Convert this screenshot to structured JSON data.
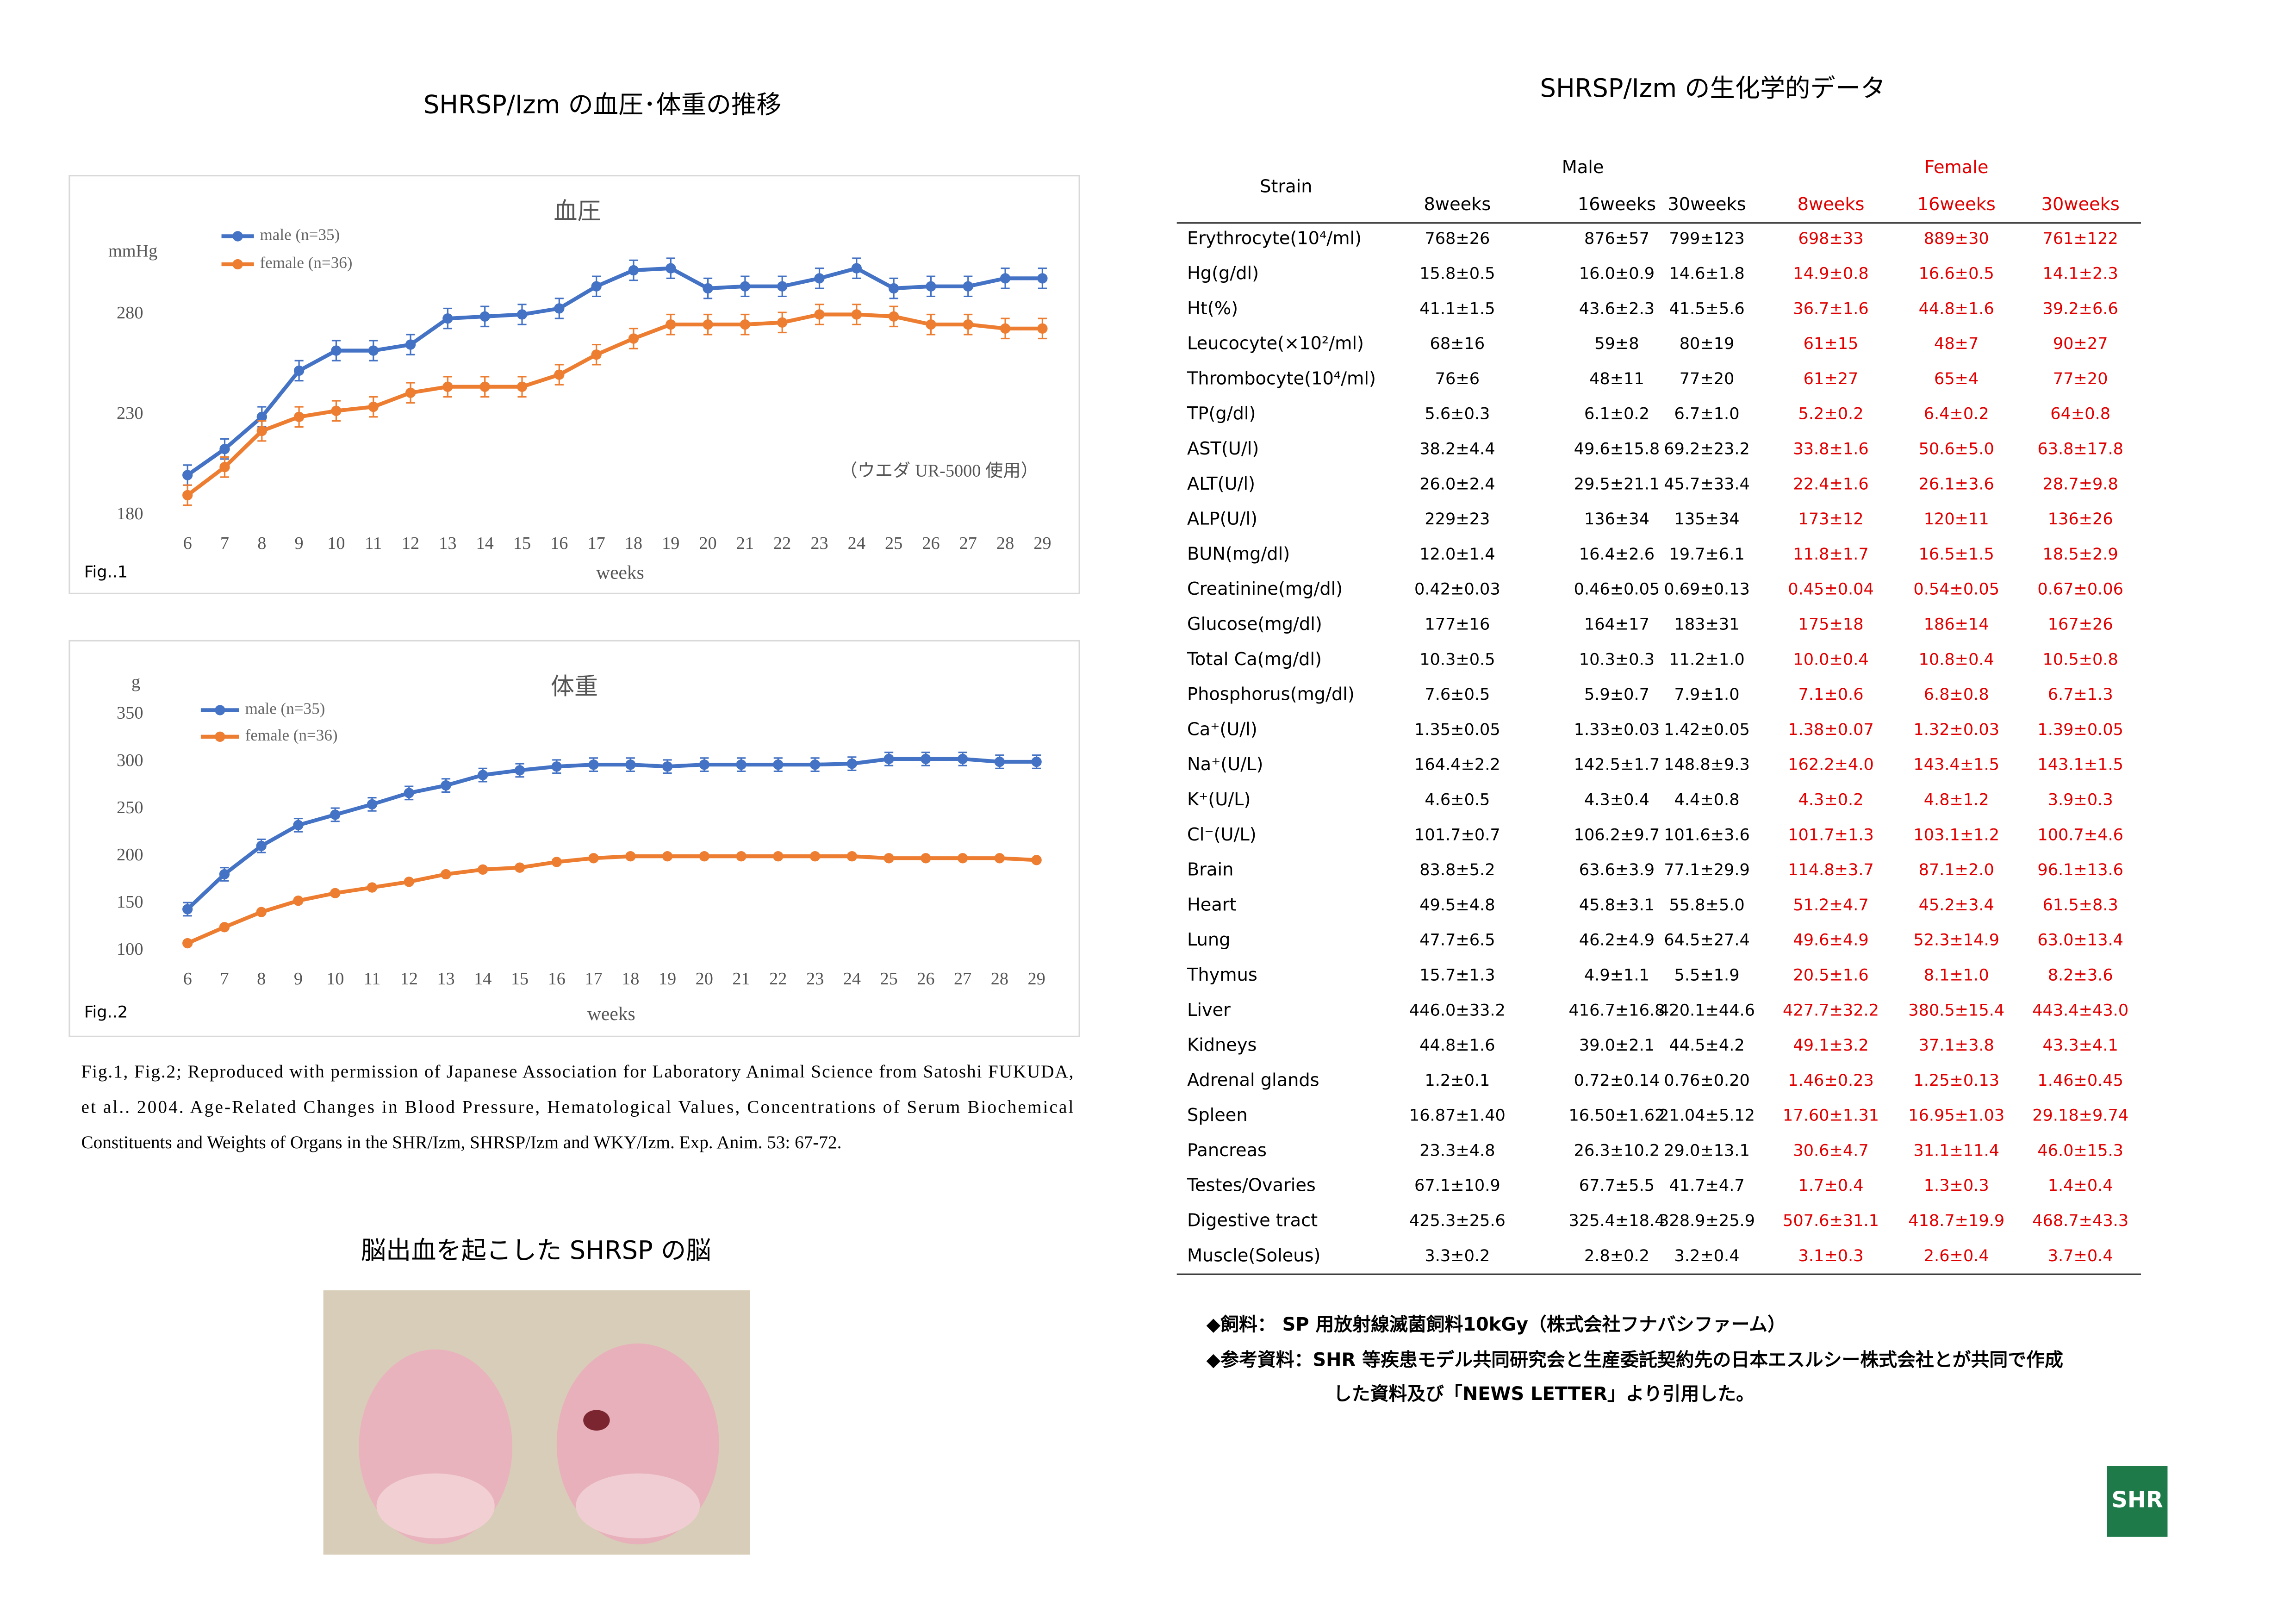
{
  "headings": {
    "left": "SHRSP/Izm の血圧･体重の推移",
    "right": "SHRSP/Izm の生化学的データ",
    "photo": "脳出血を起こした SHRSP の脳"
  },
  "chart_data": [
    {
      "type": "line",
      "title": "血圧",
      "y_label": "mmHg",
      "x_label": "weeks",
      "figure_label": "Fig..1",
      "annotation": "（ウエダ UR-5000 使用）",
      "categories": [
        "6",
        "7",
        "8",
        "9",
        "10",
        "11",
        "12",
        "13",
        "14",
        "15",
        "16",
        "17",
        "18",
        "19",
        "20",
        "21",
        "22",
        "23",
        "24",
        "25",
        "26",
        "27",
        "28",
        "29"
      ],
      "ylim": [
        180,
        330
      ],
      "yticks": [
        180,
        230,
        280
      ],
      "series": [
        {
          "name": "male (n=35)",
          "color": "#4472c4",
          "values": [
            200,
            213,
            229,
            252,
            262,
            262,
            265,
            278,
            279,
            280,
            283,
            294,
            302,
            303,
            293,
            294,
            294,
            298,
            303,
            293,
            294,
            294,
            298,
            298
          ],
          "errors": [
            5,
            5,
            5,
            5,
            5,
            5,
            5,
            5,
            5,
            5,
            5,
            5,
            5,
            5,
            5,
            5,
            5,
            5,
            5,
            5,
            5,
            5,
            5,
            5
          ]
        },
        {
          "name": "female (n=36)",
          "color": "#ed7d31",
          "values": [
            190,
            204,
            222,
            229,
            232,
            234,
            241,
            244,
            244,
            244,
            250,
            260,
            268,
            275,
            275,
            275,
            276,
            280,
            280,
            279,
            275,
            275,
            273,
            273
          ],
          "errors": [
            5,
            5,
            5,
            5,
            5,
            5,
            5,
            5,
            5,
            5,
            5,
            5,
            5,
            5,
            5,
            5,
            5,
            5,
            5,
            5,
            5,
            5,
            5,
            5
          ]
        }
      ]
    },
    {
      "type": "line",
      "title": "体重",
      "y_label": "g",
      "x_label": "weeks",
      "figure_label": "Fig..2",
      "categories": [
        "6",
        "7",
        "8",
        "9",
        "10",
        "11",
        "12",
        "13",
        "14",
        "15",
        "16",
        "17",
        "18",
        "19",
        "20",
        "21",
        "22",
        "23",
        "24",
        "25",
        "26",
        "27",
        "28",
        "29"
      ],
      "ylim": [
        100,
        350
      ],
      "yticks": [
        100,
        150,
        200,
        250,
        300,
        350
      ],
      "series": [
        {
          "name": "male (n=35)",
          "color": "#4472c4",
          "values": [
            144,
            181,
            211,
            233,
            244,
            255,
            267,
            275,
            286,
            291,
            295,
            297,
            297,
            295,
            297,
            297,
            297,
            297,
            298,
            303,
            303,
            303,
            300,
            300
          ],
          "errors": [
            7,
            7,
            7,
            7,
            7,
            7,
            7,
            7,
            7,
            7,
            7,
            7,
            7,
            7,
            7,
            7,
            7,
            7,
            7,
            7,
            7,
            7,
            7,
            7
          ]
        },
        {
          "name": "female (n=36)",
          "color": "#ed7d31",
          "values": [
            108,
            125,
            141,
            153,
            161,
            167,
            173,
            181,
            186,
            188,
            194,
            198,
            200,
            200,
            200,
            200,
            200,
            200,
            200,
            198,
            198,
            198,
            198,
            196
          ],
          "errors": [
            2,
            2,
            2,
            2,
            2,
            2,
            2,
            2,
            2,
            2,
            2,
            2,
            2,
            2,
            2,
            2,
            2,
            2,
            2,
            2,
            2,
            2,
            2,
            2
          ]
        }
      ]
    }
  ],
  "citation": [
    "Fig.1, Fig.2; Reproduced with permission of Japanese Association for Laboratory Animal Science from Satoshi FUKUDA,",
    "et al.. 2004. Age-Related Changes in Blood Pressure, Hematological Values, Concentrations of Serum Biochemical",
    "Constituents and Weights of Organs in the SHR/Izm, SHRSP/Izm and WKY/Izm. Exp. Anim. 53: 67-72."
  ],
  "table": {
    "strain": "Strain",
    "groups": [
      "Male",
      "Female"
    ],
    "weeks": [
      "8weeks",
      "16weeks",
      "30weeks",
      "8weeks",
      "16weeks",
      "30weeks"
    ],
    "rows": [
      [
        "Erythrocyte(10⁴/ml)",
        "768±26",
        "876±57",
        "799±123",
        "698±33",
        "889±30",
        "761±122"
      ],
      [
        "Hg(g/dl)",
        "15.8±0.5",
        "16.0±0.9",
        "14.6±1.8",
        "14.9±0.8",
        "16.6±0.5",
        "14.1±2.3"
      ],
      [
        "Ht(%)",
        "41.1±1.5",
        "43.6±2.3",
        "41.5±5.6",
        "36.7±1.6",
        "44.8±1.6",
        "39.2±6.6"
      ],
      [
        "Leucocyte(×10²/ml)",
        "68±16",
        "59±8",
        "80±19",
        "61±15",
        "48±7",
        "90±27"
      ],
      [
        "Thrombocyte(10⁴/ml)",
        "76±6",
        "48±11",
        "77±20",
        "61±27",
        "65±4",
        "77±20"
      ],
      [
        "TP(g/dl)",
        "5.6±0.3",
        "6.1±0.2",
        "6.7±1.0",
        "5.2±0.2",
        "6.4±0.2",
        "64±0.8"
      ],
      [
        "AST(U/l)",
        "38.2±4.4",
        "49.6±15.8",
        "69.2±23.2",
        "33.8±1.6",
        "50.6±5.0",
        "63.8±17.8"
      ],
      [
        "ALT(U/l)",
        "26.0±2.4",
        "29.5±21.1",
        "45.7±33.4",
        "22.4±1.6",
        "26.1±3.6",
        "28.7±9.8"
      ],
      [
        "ALP(U/l)",
        "229±23",
        "136±34",
        "135±34",
        "173±12",
        "120±11",
        "136±26"
      ],
      [
        "BUN(mg/dl)",
        "12.0±1.4",
        "16.4±2.6",
        "19.7±6.1",
        "11.8±1.7",
        "16.5±1.5",
        "18.5±2.9"
      ],
      [
        "Creatinine(mg/dl)",
        "0.42±0.03",
        "0.46±0.05",
        "0.69±0.13",
        "0.45±0.04",
        "0.54±0.05",
        "0.67±0.06"
      ],
      [
        "Glucose(mg/dl)",
        "177±16",
        "164±17",
        "183±31",
        "175±18",
        "186±14",
        "167±26"
      ],
      [
        "Total Ca(mg/dl)",
        "10.3±0.5",
        "10.3±0.3",
        "11.2±1.0",
        "10.0±0.4",
        "10.8±0.4",
        "10.5±0.8"
      ],
      [
        "Phosphorus(mg/dl)",
        "7.6±0.5",
        "5.9±0.7",
        "7.9±1.0",
        "7.1±0.6",
        "6.8±0.8",
        "6.7±1.3"
      ],
      [
        "Ca⁺(U/l)",
        "1.35±0.05",
        "1.33±0.03",
        "1.42±0.05",
        "1.38±0.07",
        "1.32±0.03",
        "1.39±0.05"
      ],
      [
        "Na⁺(U/L)",
        "164.4±2.2",
        "142.5±1.7",
        "148.8±9.3",
        "162.2±4.0",
        "143.4±1.5",
        "143.1±1.5"
      ],
      [
        "K⁺(U/L)",
        "4.6±0.5",
        "4.3±0.4",
        "4.4±0.8",
        "4.3±0.2",
        "4.8±1.2",
        "3.9±0.3"
      ],
      [
        "Cl⁻(U/L)",
        "101.7±0.7",
        "106.2±9.7",
        "101.6±3.6",
        "101.7±1.3",
        "103.1±1.2",
        "100.7±4.6"
      ],
      [
        "Brain",
        "83.8±5.2",
        "63.6±3.9",
        "77.1±29.9",
        "114.8±3.7",
        "87.1±2.0",
        "96.1±13.6"
      ],
      [
        "Heart",
        "49.5±4.8",
        "45.8±3.1",
        "55.8±5.0",
        "51.2±4.7",
        "45.2±3.4",
        "61.5±8.3"
      ],
      [
        "Lung",
        "47.7±6.5",
        "46.2±4.9",
        "64.5±27.4",
        "49.6±4.9",
        "52.3±14.9",
        "63.0±13.4"
      ],
      [
        "Thymus",
        "15.7±1.3",
        "4.9±1.1",
        "5.5±1.9",
        "20.5±1.6",
        "8.1±1.0",
        "8.2±3.6"
      ],
      [
        "Liver",
        "446.0±33.2",
        "416.7±16.8",
        "420.1±44.6",
        "427.7±32.2",
        "380.5±15.4",
        "443.4±43.0"
      ],
      [
        "Kidneys",
        "44.8±1.6",
        "39.0±2.1",
        "44.5±4.2",
        "49.1±3.2",
        "37.1±3.8",
        "43.3±4.1"
      ],
      [
        "Adrenal glands",
        "1.2±0.1",
        "0.72±0.14",
        "0.76±0.20",
        "1.46±0.23",
        "1.25±0.13",
        "1.46±0.45"
      ],
      [
        "Spleen",
        "16.87±1.40",
        "16.50±1.62",
        "21.04±5.12",
        "17.60±1.31",
        "16.95±1.03",
        "29.18±9.74"
      ],
      [
        "Pancreas",
        "23.3±4.8",
        "26.3±10.2",
        "29.0±13.1",
        "30.6±4.7",
        "31.1±11.4",
        "46.0±15.3"
      ],
      [
        "Testes/Ovaries",
        "67.1±10.9",
        "67.7±5.5",
        "41.7±4.7",
        "1.7±0.4",
        "1.3±0.3",
        "1.4±0.4"
      ],
      [
        "Digestive tract",
        "425.3±25.6",
        "325.4±18.4",
        "328.9±25.9",
        "507.6±31.1",
        "418.7±19.9",
        "468.7±43.3"
      ],
      [
        "Muscle(Soleus)",
        "3.3±0.2",
        "2.8±0.2",
        "3.2±0.4",
        "3.1±0.3",
        "2.6±0.4",
        "3.7±0.4"
      ]
    ]
  },
  "notes": [
    "◆飼料：  SP 用放射線滅菌飼料10kGy（株式会社フナバシファーム）",
    "◆参考資料：SHR 等疾患モデル共同研究会と生産委託契約先の日本エスルシー株式会社とが共同で作成",
    "した資料及び「NEWS LETTER」より引用した。"
  ],
  "logo": "SHR"
}
